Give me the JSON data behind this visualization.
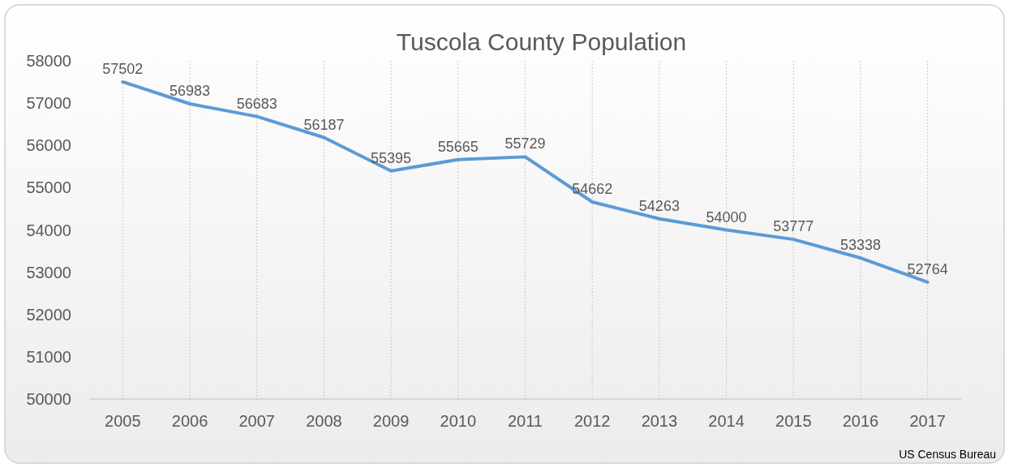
{
  "chart_data": {
    "type": "line",
    "title": "Tuscola County Population",
    "categories": [
      "2005",
      "2006",
      "2007",
      "2008",
      "2009",
      "2010",
      "2011",
      "2012",
      "2013",
      "2014",
      "2015",
      "2016",
      "2017"
    ],
    "series": [
      {
        "color": "#5b9bd5",
        "values": [
          57502,
          56983,
          56683,
          56187,
          55395,
          55665,
          55729,
          54662,
          54263,
          54000,
          53777,
          53338,
          52764
        ]
      }
    ],
    "ylim": [
      50000,
      58000
    ],
    "yticks": [
      50000,
      51000,
      52000,
      53000,
      54000,
      55000,
      56000,
      57000,
      58000
    ],
    "grid": "x",
    "marker": "none",
    "line_style": "solid",
    "data_labels": true,
    "annotations": [
      "US Census Bureau"
    ]
  }
}
